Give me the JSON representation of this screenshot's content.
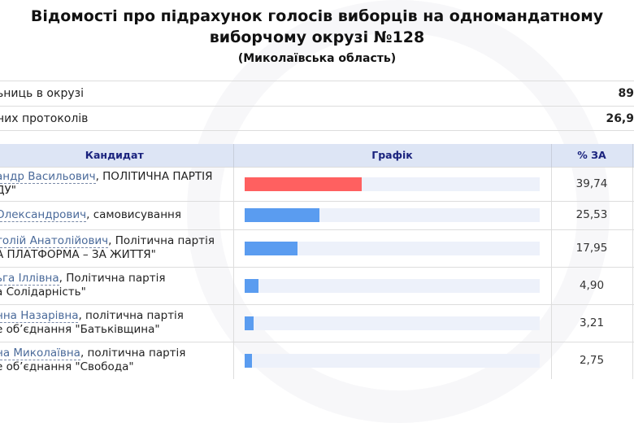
{
  "title_line1": "Відомості про підрахунок голосів виборців на одномандатному",
  "title_line2": "виборчому окрузі №128",
  "region": "(Миколаївська область)",
  "summary": [
    {
      "label": "ьниць в окрузі",
      "value": "89"
    },
    {
      "label": "них протоколів",
      "value": "26,9"
    }
  ],
  "table": {
    "headers": {
      "candidate": "Кандидат",
      "chart": "Графік",
      "percent": "% ЗА"
    },
    "rows": [
      {
        "name": "андр Васильович",
        "rest1": ", ПОЛІТИЧНА ПАРТІЯ",
        "rest2": "ДУ\"",
        "percent": "39,74",
        "value": 39.74,
        "color": "#ff6060",
        "height": 42
      },
      {
        "name": "Олександрович",
        "rest1": ", самовисування",
        "rest2": "",
        "percent": "25,53",
        "value": 25.53,
        "color": "#5a9cf0",
        "height": 35
      },
      {
        "name": "толій Анатолійович",
        "rest1": ", Політична партія",
        "rest2": "А ПЛАТФОРМА – ЗА ЖИТТЯ\"",
        "percent": "17,95",
        "value": 17.95,
        "color": "#5a9cf0",
        "height": 46
      },
      {
        "name": "ьга Іллівна",
        "rest1": ", Політична партія",
        "rest2": "а Солідарність\"",
        "percent": "4,90",
        "value": 4.9,
        "color": "#5a9cf0",
        "height": 46
      },
      {
        "name": "нна Назарівна",
        "rest1": ", політична партія",
        "rest2": "е об’єднання \"Батьківщина\"",
        "percent": "3,21",
        "value": 3.21,
        "color": "#5a9cf0",
        "height": 46
      },
      {
        "name": "на Миколаївна",
        "rest1": ", політична партія",
        "rest2": "е об’єднання \"Свобода\"",
        "percent": "2,75",
        "value": 2.75,
        "color": "#5a9cf0",
        "height": 46
      }
    ]
  }
}
